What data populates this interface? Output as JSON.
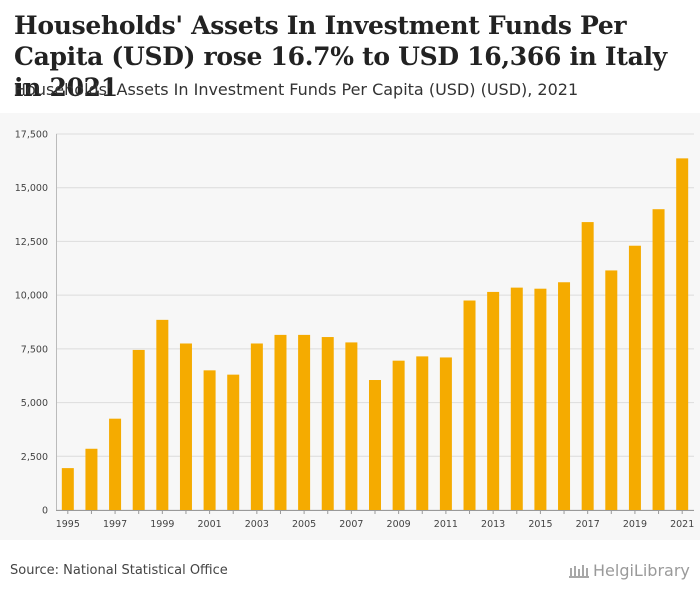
{
  "header": {
    "title": "Households' Assets In Investment Funds Per Capita (USD) rose 16.7% to USD 16,366 in Italy in 2021",
    "subtitle": "Households' Assets In Investment Funds Per Capita (USD) (USD), 2021"
  },
  "footer": {
    "source": "Source: National Statistical Office",
    "brand": "HelgiLibrary"
  },
  "colors": {
    "bar": "#f5ab00",
    "grid": "#dcdcdc",
    "background": "#f7f7f7"
  },
  "chart_data": {
    "type": "bar",
    "title": "Households' Assets In Investment Funds Per Capita (USD) rose 16.7% to USD 16,366 in Italy in 2021",
    "subtitle": "Households' Assets In Investment Funds Per Capita (USD) (USD), 2021",
    "xlabel": "",
    "ylabel": "",
    "ylim": [
      0,
      17500
    ],
    "yticks": [
      0,
      2500,
      5000,
      7500,
      10000,
      12500,
      15000,
      17500
    ],
    "ytick_labels": [
      "0",
      "2,500",
      "5,000",
      "7,500",
      "10,000",
      "12,500",
      "15,000",
      "17,500"
    ],
    "categories": [
      "1995",
      "1996",
      "1997",
      "1998",
      "1999",
      "2000",
      "2001",
      "2002",
      "2003",
      "2004",
      "2005",
      "2006",
      "2007",
      "2008",
      "2009",
      "2010",
      "2011",
      "2012",
      "2013",
      "2014",
      "2015",
      "2016",
      "2017",
      "2018",
      "2019",
      "2020",
      "2021"
    ],
    "xtick_labels": [
      "1995",
      "",
      "1997",
      "",
      "1999",
      "",
      "2001",
      "",
      "2003",
      "",
      "2005",
      "",
      "2007",
      "",
      "2009",
      "",
      "2011",
      "",
      "2013",
      "",
      "2015",
      "",
      "2017",
      "",
      "2019",
      "",
      "2021"
    ],
    "values": [
      1950,
      2850,
      4250,
      7450,
      8850,
      7750,
      6500,
      6300,
      7750,
      8150,
      8150,
      8050,
      7800,
      6050,
      6950,
      7150,
      7100,
      9750,
      10150,
      10350,
      10300,
      10600,
      13400,
      11150,
      12300,
      14000,
      16366
    ],
    "grid": true
  }
}
